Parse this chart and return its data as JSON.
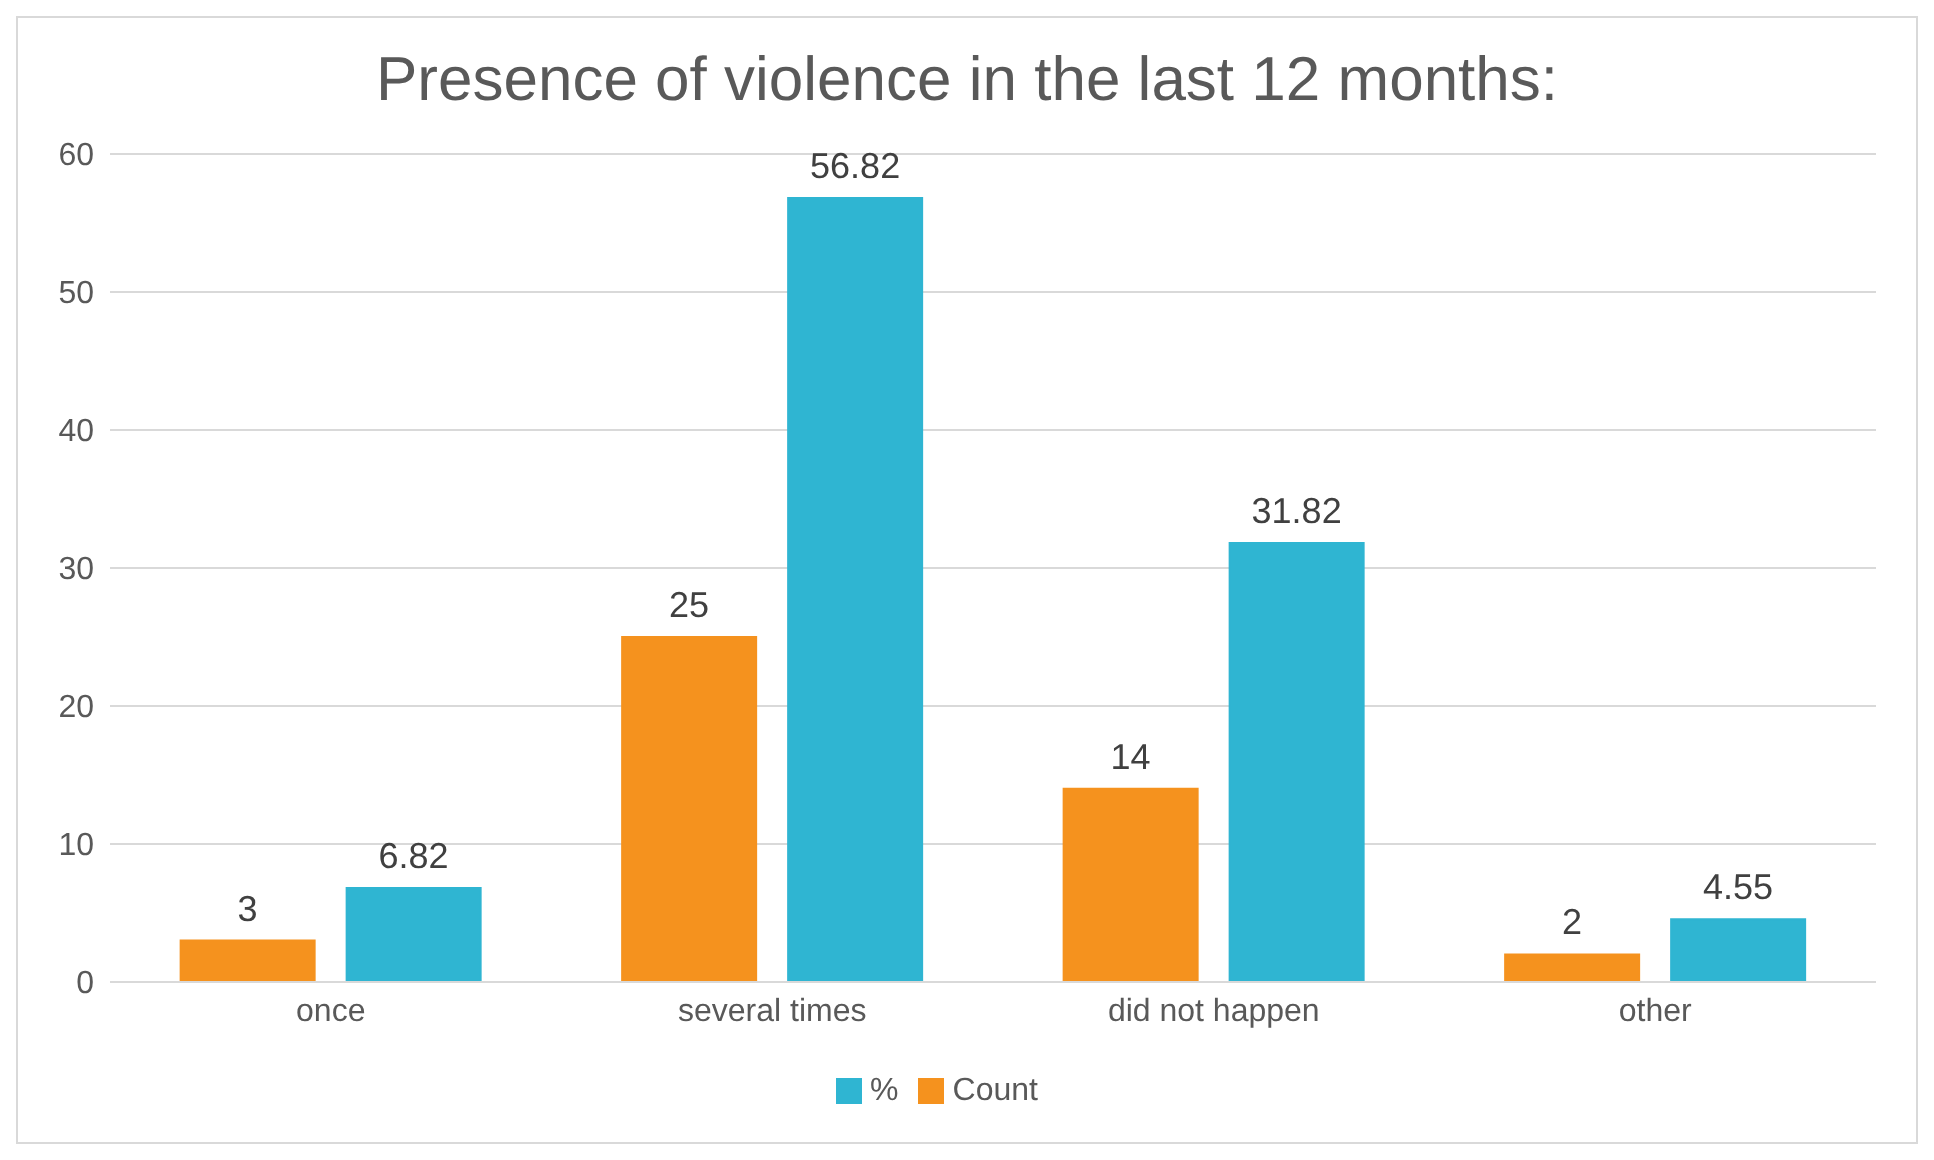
{
  "chart_data": {
    "type": "bar",
    "title": "Presence of violence in the last 12 months:",
    "categories": [
      "once",
      "several times",
      "did not happen",
      "other"
    ],
    "series": [
      {
        "name": "Count",
        "color": "#f5921e",
        "values": [
          3,
          25,
          14,
          2
        ]
      },
      {
        "name": "%",
        "color": "#2fb5d2",
        "values": [
          6.82,
          56.82,
          31.82,
          4.55
        ]
      }
    ],
    "ylim": [
      0,
      60
    ],
    "yticks": [
      0,
      10,
      20,
      30,
      40,
      50,
      60
    ],
    "grid": "y",
    "legend": "bottom",
    "data_labels": true
  }
}
